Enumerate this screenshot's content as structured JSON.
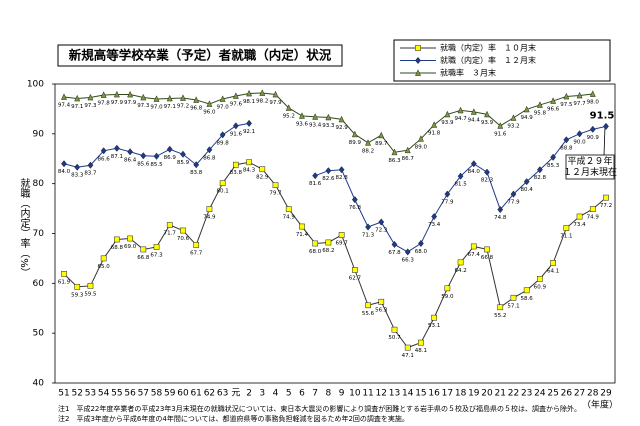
{
  "chart_data": {
    "type": "line",
    "title": "新規高等学校卒業（予定）者就職（内定）状況",
    "y_label": "就職（内定）率（%）",
    "x_label": "（年度）",
    "annotation": "平成２９年\n１２月末現在",
    "notes": [
      "注1　平成22年度卒業者の平成23年3月末現在の就職状況については、東日本大震災の影響により調査が困難とする岩手県の５校及び福島県の５校は、調査から除外。",
      "注2　平成3年度から平成6年度の4年間については、都道府県等の事務負担軽減を図るため年2回の調査を実施。"
    ],
    "categories": [
      "51",
      "52",
      "53",
      "54",
      "55",
      "56",
      "57",
      "58",
      "59",
      "60",
      "61",
      "62",
      "63",
      "元",
      "2",
      "3",
      "4",
      "5",
      "6",
      "7",
      "8",
      "9",
      "10",
      "11",
      "12",
      "13",
      "14",
      "15",
      "16",
      "17",
      "18",
      "19",
      "20",
      "21",
      "22",
      "23",
      "24",
      "25",
      "26",
      "27",
      "28",
      "29"
    ],
    "ylim": [
      40,
      100
    ],
    "yticks": [
      40,
      50,
      60,
      70,
      80,
      90,
      100
    ],
    "grid": false,
    "series": [
      {
        "name": "就職（内定）率　１０月末",
        "color": "#ffff00",
        "line_color": "#333333",
        "marker": "square",
        "values": [
          61.9,
          59.3,
          59.5,
          65.0,
          68.8,
          69.0,
          66.8,
          67.3,
          71.7,
          70.6,
          67.7,
          74.9,
          80.1,
          83.8,
          84.3,
          82.9,
          79.7,
          74.9,
          71.4,
          68.0,
          68.2,
          69.7,
          62.7,
          55.6,
          56.3,
          50.7,
          47.1,
          48.1,
          53.1,
          59.0,
          64.2,
          67.4,
          66.8,
          55.2,
          57.1,
          58.6,
          60.9,
          64.1,
          71.1,
          73.4,
          74.9,
          77.2
        ],
        "value_labels": [
          "61.9",
          "59.3",
          "59.5",
          "65.0",
          "68.8",
          "69.0",
          "66.8",
          "67.3",
          "71.7",
          "70.6",
          "67.7",
          "74.9",
          "80.1",
          "83.8",
          "84.3",
          "82.9",
          "79.7",
          "74.9",
          "71.4",
          "68.0",
          "68.2",
          "69.7",
          "62.7",
          "55.6",
          "56.3",
          "50.7",
          "47.1",
          "48.1",
          "53.1",
          "59.0",
          "64.2",
          "67.4",
          "66.8",
          "55.2",
          "57.1",
          "58.6",
          "60.9",
          "64.1",
          "71.1",
          "73.4",
          "74.9",
          "77.2"
        ]
      },
      {
        "name": "就職（内定）率　１２月末",
        "color": "#1f3a8a",
        "line_color": "#1f3a8a",
        "marker": "diamond",
        "values": [
          84.0,
          83.3,
          83.7,
          86.6,
          87.1,
          86.4,
          85.6,
          85.5,
          86.9,
          85.9,
          83.8,
          86.8,
          89.8,
          91.6,
          92.1,
          null,
          null,
          null,
          null,
          81.6,
          82.6,
          82.8,
          76.8,
          71.3,
          72.3,
          67.8,
          66.3,
          68.0,
          73.4,
          77.9,
          81.5,
          84.0,
          82.3,
          74.8,
          77.9,
          80.4,
          82.8,
          85.3,
          88.8,
          90.0,
          90.9,
          91.5
        ],
        "value_labels": [
          "84.0",
          "83.3",
          "83.7",
          "86.6",
          "87.1",
          "86.4",
          "85.6",
          "85.5",
          "86.9",
          "85.9",
          "83.8",
          "86.8",
          "89.8",
          "91.6",
          "92.1",
          null,
          null,
          null,
          null,
          "81.6",
          "82.6",
          "82.8",
          "76.8",
          "71.3",
          "72.3",
          "67.8",
          "66.3",
          "68.0",
          "73.4",
          "77.9",
          "81.5",
          "84.0",
          "82.3",
          "74.8",
          "77.9",
          "80.4",
          "82.8",
          "85.3",
          "88.8",
          "90.0",
          "90.9",
          "91.5"
        ]
      },
      {
        "name": "就職率　３月末",
        "color": "#7a9a3a",
        "line_color": "#2e4a1a",
        "marker": "triangle",
        "values": [
          97.4,
          97.1,
          97.3,
          97.8,
          97.9,
          97.9,
          97.3,
          97.0,
          97.1,
          97.2,
          96.8,
          96.0,
          97.0,
          97.6,
          98.1,
          98.2,
          97.9,
          95.2,
          93.6,
          93.4,
          93.3,
          92.9,
          89.9,
          88.2,
          89.7,
          86.3,
          86.7,
          89.0,
          91.8,
          93.9,
          94.7,
          94.4,
          93.9,
          91.6,
          93.2,
          94.9,
          95.8,
          96.6,
          97.5,
          97.7,
          98.0,
          null
        ],
        "value_labels": [
          "97.4",
          "97.1",
          "97.3",
          "97.8",
          "97.9",
          "97.9",
          "97.3",
          "97.0",
          "97.1",
          "97.2",
          "96.8",
          "96.0",
          "97.0",
          "97.6",
          "98.1",
          "98.2",
          "97.9",
          "95.2",
          "93.6",
          "93.4",
          "93.3",
          "92.9",
          "89.9",
          "88.2",
          "89.7",
          "86.3",
          "86.7",
          "89.0",
          "91.8",
          "93.9",
          "94.7",
          "94.4",
          "93.9",
          "91.6",
          "93.2",
          "94.9",
          "95.8",
          "96.6",
          "97.5",
          "97.7",
          "98.0",
          null
        ]
      }
    ]
  }
}
